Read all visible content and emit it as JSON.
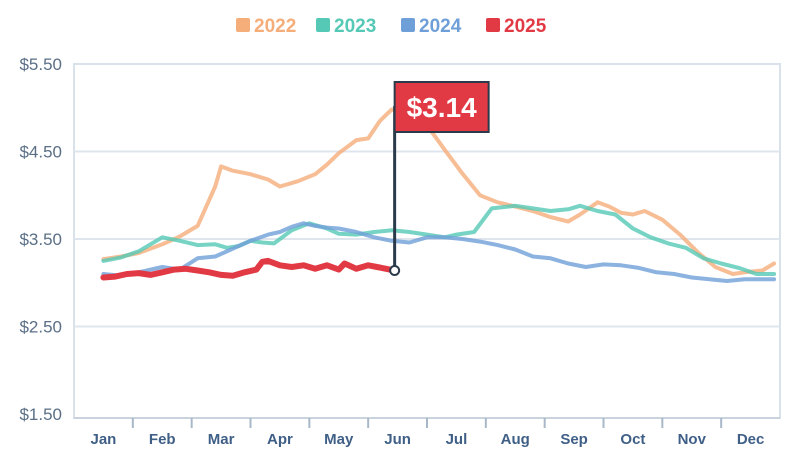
{
  "chart_data": {
    "type": "line",
    "title": "",
    "xlabel": "",
    "ylabel": "",
    "ylim": [
      1.5,
      5.5
    ],
    "yticks": [
      "$5.50",
      "$4.50",
      "$3.50",
      "$2.50",
      "$1.50"
    ],
    "ytick_values": [
      5.5,
      4.5,
      3.5,
      2.5,
      1.5
    ],
    "categories": [
      "Jan",
      "Feb",
      "Mar",
      "Apr",
      "May",
      "Jun",
      "Jul",
      "Aug",
      "Sep",
      "Oct",
      "Nov",
      "Dec"
    ],
    "grid": true,
    "legend_position": "top-center",
    "series": [
      {
        "name": "2022",
        "color": "#f5ad7a",
        "x": [
          1.0,
          1.3,
          1.6,
          2.0,
          2.3,
          2.6,
          2.9,
          3.0,
          3.2,
          3.5,
          3.8,
          4.0,
          4.3,
          4.6,
          4.8,
          5.0,
          5.3,
          5.5,
          5.7,
          5.9,
          6.1,
          6.3,
          6.5,
          6.8,
          7.1,
          7.4,
          7.7,
          8.0,
          8.3,
          8.6,
          8.9,
          9.1,
          9.4,
          9.6,
          9.8,
          10.0,
          10.2,
          10.5,
          10.8,
          11.1,
          11.4,
          11.7,
          11.9,
          12.2,
          12.4
        ],
        "values": [
          3.27,
          3.3,
          3.34,
          3.44,
          3.53,
          3.65,
          4.1,
          4.33,
          4.28,
          4.24,
          4.18,
          4.1,
          4.16,
          4.24,
          4.35,
          4.48,
          4.63,
          4.65,
          4.85,
          4.98,
          4.95,
          4.91,
          4.8,
          4.52,
          4.25,
          4.0,
          3.92,
          3.87,
          3.82,
          3.75,
          3.7,
          3.78,
          3.92,
          3.87,
          3.8,
          3.78,
          3.82,
          3.72,
          3.55,
          3.35,
          3.18,
          3.1,
          3.12,
          3.14,
          3.22
        ]
      },
      {
        "name": "2023",
        "color": "#55c9b5",
        "x": [
          1.0,
          1.3,
          1.6,
          2.0,
          2.3,
          2.6,
          2.9,
          3.1,
          3.3,
          3.5,
          3.7,
          3.9,
          4.2,
          4.5,
          4.8,
          5.0,
          5.3,
          5.6,
          5.9,
          6.2,
          6.5,
          6.8,
          7.0,
          7.3,
          7.6,
          8.0,
          8.3,
          8.6,
          8.9,
          9.1,
          9.4,
          9.7,
          10.0,
          10.3,
          10.6,
          10.9,
          11.2,
          11.5,
          11.8,
          12.1,
          12.4
        ],
        "values": [
          3.25,
          3.29,
          3.36,
          3.52,
          3.48,
          3.43,
          3.44,
          3.4,
          3.42,
          3.48,
          3.46,
          3.45,
          3.6,
          3.68,
          3.62,
          3.56,
          3.55,
          3.58,
          3.6,
          3.58,
          3.55,
          3.52,
          3.55,
          3.58,
          3.85,
          3.88,
          3.85,
          3.82,
          3.84,
          3.88,
          3.82,
          3.78,
          3.62,
          3.52,
          3.45,
          3.4,
          3.28,
          3.22,
          3.17,
          3.1,
          3.1
        ]
      },
      {
        "name": "2024",
        "color": "#6f9fd8",
        "x": [
          1.0,
          1.3,
          1.6,
          2.0,
          2.3,
          2.6,
          2.9,
          3.1,
          3.3,
          3.5,
          3.8,
          4.0,
          4.2,
          4.4,
          4.6,
          4.8,
          5.0,
          5.3,
          5.6,
          5.9,
          6.2,
          6.5,
          6.8,
          7.1,
          7.4,
          7.7,
          8.0,
          8.3,
          8.6,
          8.9,
          9.2,
          9.5,
          9.8,
          10.1,
          10.4,
          10.7,
          11.0,
          11.3,
          11.6,
          11.9,
          12.2,
          12.4
        ],
        "values": [
          3.1,
          3.08,
          3.12,
          3.18,
          3.15,
          3.28,
          3.3,
          3.36,
          3.42,
          3.48,
          3.55,
          3.58,
          3.64,
          3.68,
          3.65,
          3.63,
          3.62,
          3.58,
          3.52,
          3.48,
          3.46,
          3.52,
          3.52,
          3.5,
          3.47,
          3.43,
          3.38,
          3.3,
          3.28,
          3.22,
          3.18,
          3.21,
          3.2,
          3.17,
          3.12,
          3.1,
          3.06,
          3.04,
          3.02,
          3.04,
          3.04,
          3.04
        ]
      },
      {
        "name": "2025",
        "color": "#e23a45",
        "x": [
          1.0,
          1.2,
          1.4,
          1.6,
          1.8,
          2.0,
          2.2,
          2.4,
          2.6,
          2.8,
          3.0,
          3.2,
          3.4,
          3.6,
          3.7,
          3.8,
          4.0,
          4.2,
          4.4,
          4.6,
          4.8,
          5.0,
          5.1,
          5.3,
          5.5,
          5.65,
          5.95
        ],
        "values": [
          3.06,
          3.07,
          3.1,
          3.11,
          3.09,
          3.12,
          3.15,
          3.16,
          3.14,
          3.12,
          3.09,
          3.08,
          3.12,
          3.15,
          3.24,
          3.25,
          3.2,
          3.18,
          3.2,
          3.16,
          3.2,
          3.15,
          3.22,
          3.16,
          3.2,
          3.18,
          3.14
        ]
      }
    ],
    "annotation": {
      "label": "$3.14",
      "x": 5.95,
      "value": 3.14,
      "color": "#e23a45"
    }
  }
}
